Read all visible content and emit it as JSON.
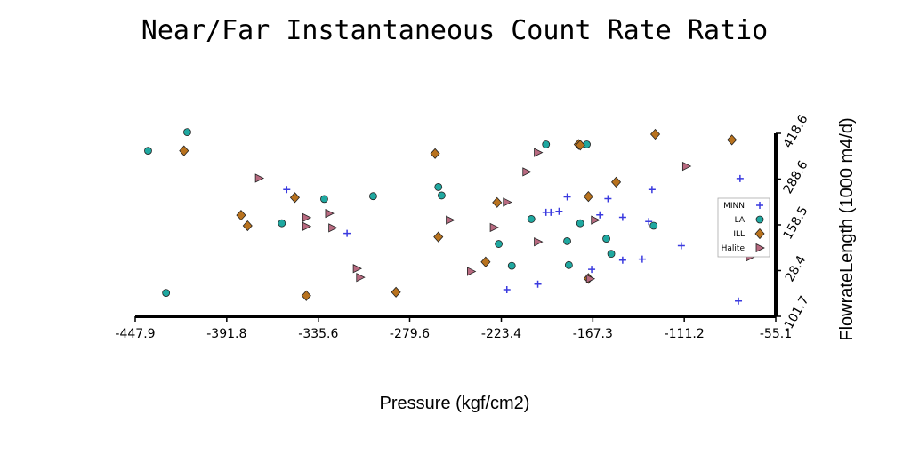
{
  "chart_data": {
    "type": "scatter",
    "title": "Near/Far Instantaneous Count Rate Ratio",
    "xlabel": "Pressure (kgf/cm2)",
    "ylabel": "FlowrateLength (1000 m4/d)",
    "xlim": [
      -447.9,
      -55.1
    ],
    "ylim": [
      -101.7,
      418.6
    ],
    "xticks": [
      "-447.9",
      "-391.8",
      "-335.6",
      "-279.6",
      "-223.4",
      "-167.3",
      "-111.2",
      "-55.1"
    ],
    "yticks": [
      "-101.7",
      "28.4",
      "158.5",
      "288.6",
      "418.6"
    ],
    "grid": false,
    "legend_position": "right",
    "series": [
      {
        "name": "MINN",
        "marker": "plus",
        "color": "#3a3adf",
        "points": [
          [
            -355,
            259
          ],
          [
            -318,
            134
          ],
          [
            -220,
            -26
          ],
          [
            -201,
            -10
          ],
          [
            -196,
            194
          ],
          [
            -193,
            194
          ],
          [
            -188,
            197
          ],
          [
            -183,
            238
          ],
          [
            -168,
            32
          ],
          [
            -163,
            187
          ],
          [
            -158,
            233
          ],
          [
            -149,
            180
          ],
          [
            -149,
            58
          ],
          [
            -137,
            61
          ],
          [
            -133,
            168
          ],
          [
            -131,
            259
          ],
          [
            -113,
            99
          ],
          [
            -78,
            -58
          ],
          [
            -77,
            290
          ]
        ]
      },
      {
        "name": "LA",
        "marker": "circle",
        "color": "#1fa8a0",
        "points": [
          [
            -440,
            369
          ],
          [
            -416,
            422
          ],
          [
            -429,
            -35
          ],
          [
            -358,
            163
          ],
          [
            -332,
            232
          ],
          [
            -302,
            240
          ],
          [
            -262,
            266
          ],
          [
            -260,
            242
          ],
          [
            -225,
            104
          ],
          [
            -217,
            42
          ],
          [
            -205,
            175
          ],
          [
            -196,
            387
          ],
          [
            -183,
            112
          ],
          [
            -182,
            44
          ],
          [
            -175,
            163
          ],
          [
            -171,
            387
          ],
          [
            -159,
            119
          ],
          [
            -156,
            76
          ],
          [
            -130,
            156
          ]
        ]
      },
      {
        "name": "ILL",
        "marker": "diamond",
        "color": "#b8721e",
        "points": [
          [
            -418,
            369
          ],
          [
            -383,
            186
          ],
          [
            -379,
            156
          ],
          [
            -350,
            236
          ],
          [
            -343,
            -43
          ],
          [
            -288,
            -33
          ],
          [
            -264,
            361
          ],
          [
            -262,
            124
          ],
          [
            -233,
            53
          ],
          [
            -226,
            222
          ],
          [
            -176,
            387
          ],
          [
            -175,
            385
          ],
          [
            -170,
            239
          ],
          [
            -170,
            6
          ],
          [
            -153,
            280
          ],
          [
            -129,
            416
          ],
          [
            -82,
            400
          ]
        ]
      },
      {
        "name": "Halite",
        "marker": "triangle-right",
        "color": "#b86a80",
        "points": [
          [
            -372,
            291
          ],
          [
            -343,
            179
          ],
          [
            -343,
            154
          ],
          [
            -329,
            191
          ],
          [
            -327,
            150
          ],
          [
            -312,
            34
          ],
          [
            -310,
            9
          ],
          [
            -255,
            172
          ],
          [
            -242,
            26
          ],
          [
            -228,
            151
          ],
          [
            -220,
            223
          ],
          [
            -208,
            309
          ],
          [
            -201,
            364
          ],
          [
            -201,
            110
          ],
          [
            -169,
            5
          ],
          [
            -166,
            172
          ],
          [
            -110,
            325
          ],
          [
            -71,
            67
          ]
        ]
      }
    ]
  }
}
